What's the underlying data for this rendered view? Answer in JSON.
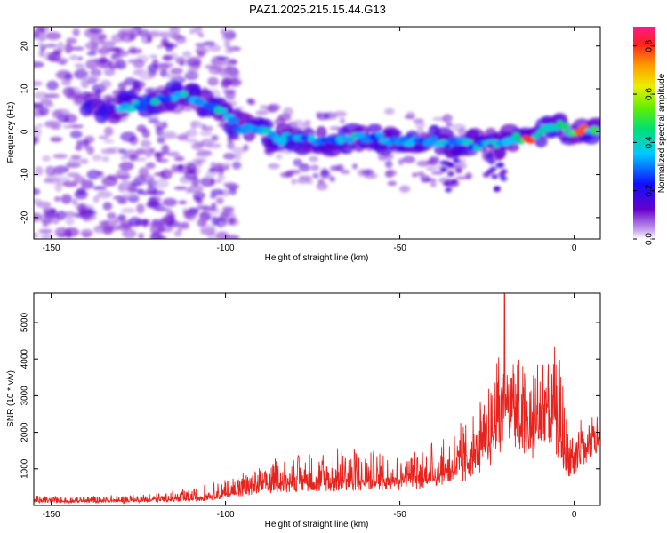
{
  "title": "PAZ1.2025.215.15.44.G13",
  "chart_data": [
    {
      "type": "heatmap",
      "title": "",
      "xlabel": "Height of straight line (km)",
      "ylabel": "Frequency (Hz)",
      "xlim": [
        -155,
        7.5
      ],
      "ylim": [
        -25,
        24.5
      ],
      "x_ticks": [
        -150,
        -100,
        -50,
        0
      ],
      "y_ticks": [
        -20,
        -10,
        0,
        10,
        20
      ],
      "x_tick_labels": [
        "-150",
        "-100",
        "-50",
        "0"
      ],
      "y_tick_labels": [
        "-20",
        "-10",
        "0",
        "10",
        "20"
      ],
      "colorbar": {
        "label": "Normalized spectral amplitude",
        "range": [
          0,
          0.88
        ],
        "ticks": [
          0.0,
          0.2,
          0.4,
          0.6,
          0.8
        ],
        "tick_labels": [
          "0.0",
          "0.2",
          "0.4",
          "0.6",
          "0.8"
        ],
        "colormap": "rainbow (white-violet-blue-cyan-green-yellow-orange-red-magenta)"
      },
      "ridge": [
        [
          -128,
          5.5
        ],
        [
          -120,
          7.5
        ],
        [
          -112,
          8.5
        ],
        [
          -105,
          6.5
        ],
        [
          -100,
          4
        ],
        [
          -96,
          1
        ],
        [
          -90,
          0
        ],
        [
          -85,
          -1.5
        ],
        [
          -78,
          -2
        ],
        [
          -70,
          -2.5
        ],
        [
          -62,
          -1.5
        ],
        [
          -55,
          -1.5
        ],
        [
          -48,
          -2.5
        ],
        [
          -44,
          -1.5
        ],
        [
          -38,
          -2.5
        ],
        [
          -32,
          -2.5
        ],
        [
          -26,
          -3.5
        ],
        [
          -20,
          -2
        ],
        [
          -15,
          -1.5
        ],
        [
          -12,
          -1.5
        ],
        [
          -8,
          0.5
        ],
        [
          -5,
          1.5
        ],
        [
          0,
          0
        ],
        [
          5,
          0.5
        ]
      ]
    },
    {
      "type": "line",
      "title": "",
      "xlabel": "Height of straight line (km)",
      "ylabel": "SNR (10 * v/v)",
      "xlim": [
        -155,
        7.5
      ],
      "ylim": [
        0,
        5800
      ],
      "x_ticks": [
        -150,
        -100,
        -50,
        0
      ],
      "y_ticks": [
        1000,
        2000,
        3000,
        4000,
        5000
      ],
      "x_tick_labels": [
        "-150",
        "-100",
        "-50",
        "0"
      ],
      "y_tick_labels": [
        "1000",
        "2000",
        "3000",
        "4000",
        "5000"
      ],
      "color": "#e8231e",
      "envelope": {
        "x": [
          -155,
          -130,
          -120,
          -110,
          -100,
          -95,
          -90,
          -80,
          -70,
          -60,
          -50,
          -40,
          -30,
          -25,
          -22,
          -20,
          -18,
          -15,
          -12,
          -10,
          -8,
          -6,
          -4,
          -2,
          0,
          3,
          5,
          7.5
        ],
        "mean": [
          120,
          130,
          150,
          180,
          300,
          450,
          550,
          650,
          700,
          700,
          720,
          800,
          1200,
          1700,
          2300,
          3000,
          3000,
          2500,
          2000,
          2600,
          3200,
          2800,
          1800,
          1200,
          1500,
          2000,
          2100,
          2000
        ],
        "peak": [
          280,
          300,
          380,
          450,
          750,
          1000,
          1150,
          1450,
          1600,
          1700,
          1500,
          1800,
          2500,
          3200,
          4300,
          5800,
          4800,
          4100,
          4300,
          4700,
          4950,
          4500,
          4300,
          2800,
          2500,
          2600,
          2700,
          2500
        ]
      }
    }
  ]
}
